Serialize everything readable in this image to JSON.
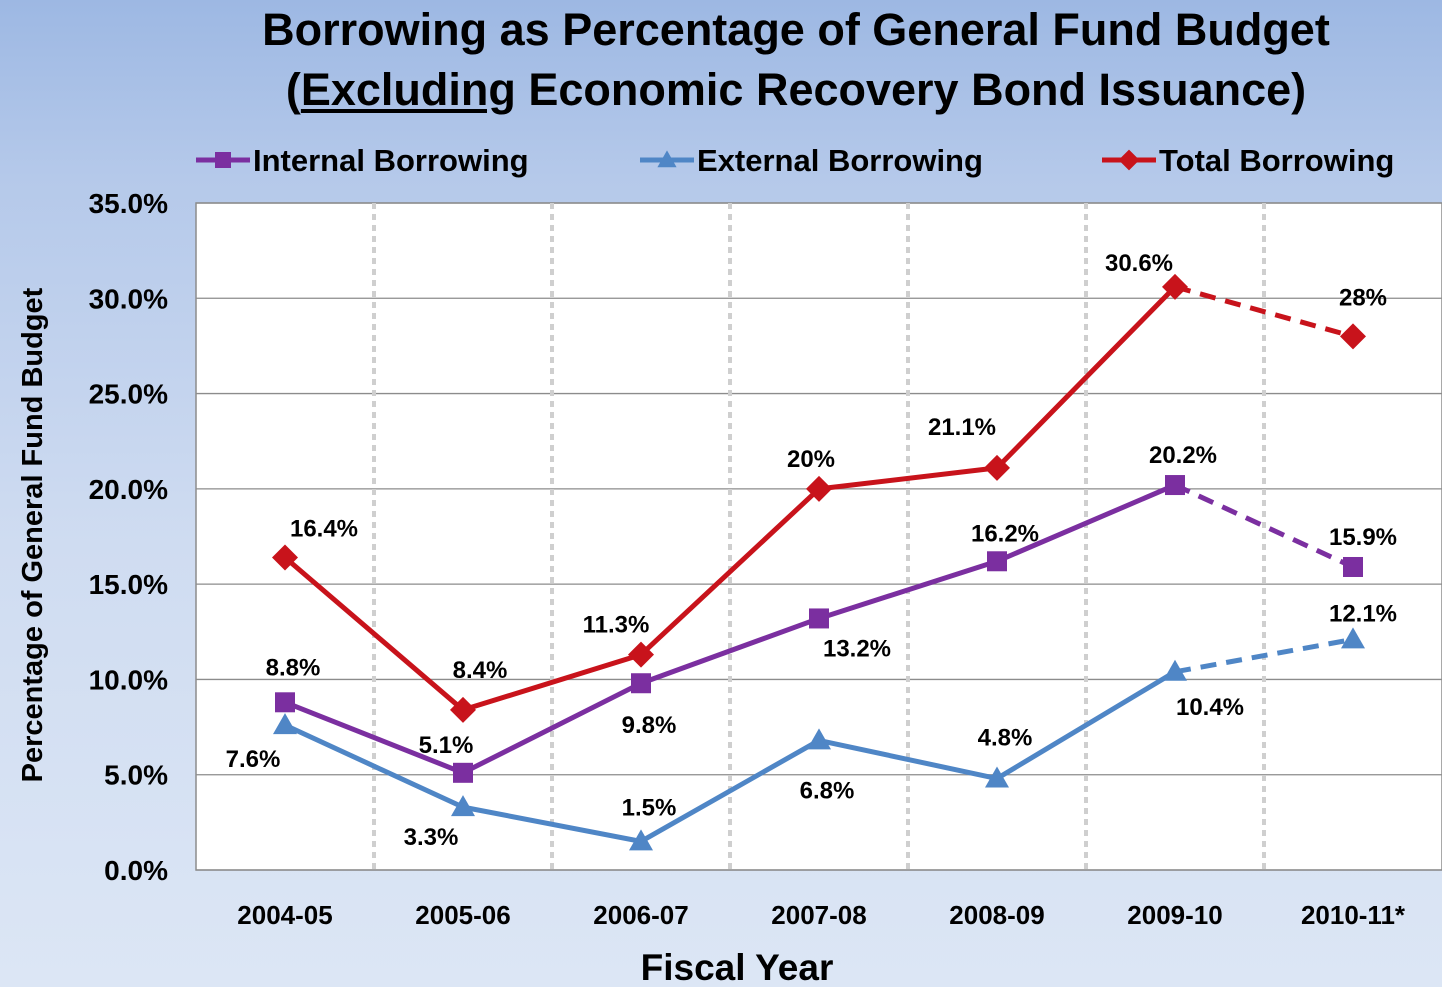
{
  "title_line1": "Borrowing as Percentage of General Fund Budget",
  "title_line2_open": "(",
  "title_line2_emph": "Excluding",
  "title_line2_rest": " Economic Recovery Bond Issuance)",
  "chart_data": {
    "type": "line",
    "title": "Borrowing as Percentage of General Fund Budget (Excluding Economic Recovery Bond Issuance)",
    "xlabel": "Fiscal Year",
    "ylabel": "Percentage of General Fund Budget",
    "ylim": [
      0,
      35
    ],
    "y_ticks": [
      "0.0%",
      "5.0%",
      "10.0%",
      "15.0%",
      "20.0%",
      "25.0%",
      "30.0%",
      "35.0%"
    ],
    "categories": [
      "2004-05",
      "2005-06",
      "2006-07",
      "2007-08",
      "2008-09",
      "2009-10",
      "2010-11*"
    ],
    "legend_position": "top",
    "grid": true,
    "series": [
      {
        "name": "Internal Borrowing",
        "color": "#7b2fa0",
        "marker": "square",
        "values": [
          8.8,
          5.1,
          9.8,
          13.2,
          16.2,
          20.2,
          15.9
        ],
        "labels": [
          "8.8%",
          "5.1%",
          "9.8%",
          "13.2%",
          "16.2%",
          "20.2%",
          "15.9%"
        ],
        "dashed_from_index": 5
      },
      {
        "name": "External Borrowing",
        "color": "#4f86c6",
        "marker": "triangle",
        "values": [
          7.6,
          3.3,
          1.5,
          6.8,
          4.8,
          10.4,
          12.1
        ],
        "labels": [
          "7.6%",
          "3.3%",
          "1.5%",
          "6.8%",
          "4.8%",
          "10.4%",
          "12.1%"
        ],
        "dashed_from_index": 5
      },
      {
        "name": "Total Borrowing",
        "color": "#c8131b",
        "marker": "diamond",
        "values": [
          16.4,
          8.4,
          11.3,
          20.0,
          21.1,
          30.6,
          28.0
        ],
        "labels": [
          "16.4%",
          "8.4%",
          "11.3%",
          "20%",
          "21.1%",
          "30.6%",
          "28%"
        ],
        "dashed_from_index": 5
      }
    ]
  }
}
